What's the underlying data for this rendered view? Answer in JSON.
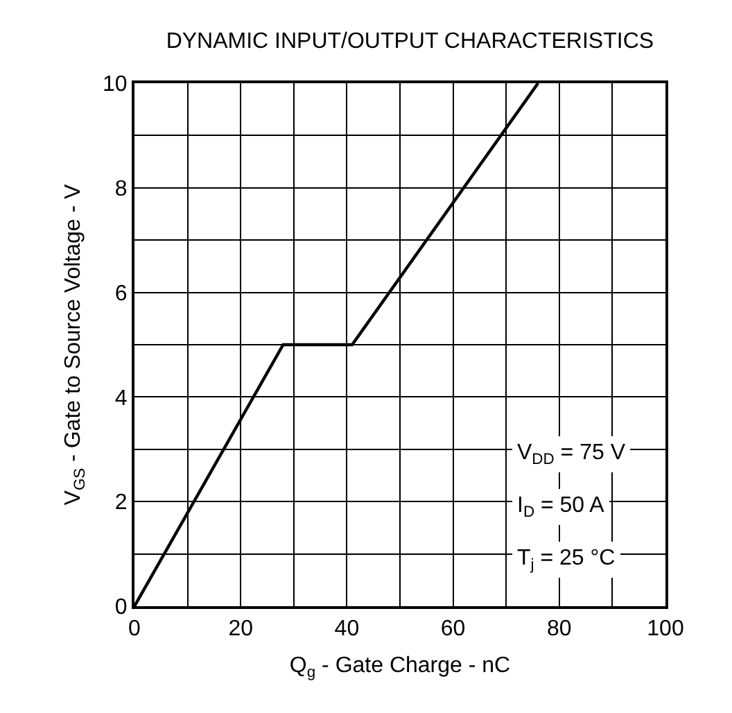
{
  "chart_data": {
    "type": "line",
    "title": "DYNAMIC INPUT/OUTPUT CHARACTERISTICS",
    "xlabel": "Q$_{g}$ - Gate Charge - nC",
    "ylabel": "V$_{GS}$ - Gate to Source Voltage - V",
    "x": [
      0,
      28,
      41,
      76
    ],
    "series": [
      {
        "color": "#000000",
        "values": [
          0,
          5,
          5,
          10
        ]
      }
    ],
    "xlim": [
      0,
      100
    ],
    "ylim": [
      0,
      10
    ],
    "xticks": [
      0,
      {
        "value": 10,
        "label": null
      },
      20,
      {
        "value": 30,
        "label": null
      },
      40,
      {
        "value": 50,
        "label": null
      },
      60,
      {
        "value": 70,
        "label": null
      },
      80,
      {
        "value": 90,
        "label": null
      },
      100
    ],
    "yticks": [
      0,
      {
        "value": 1,
        "label": null
      },
      2,
      {
        "value": 3,
        "label": null
      },
      4,
      {
        "value": 5,
        "label": null
      },
      6,
      {
        "value": 7,
        "label": null
      },
      8,
      {
        "value": 9,
        "label": null
      },
      10
    ],
    "grid": true,
    "marker": "none",
    "line_style": "solid",
    "annotations": [
      "V$_{DD}$ = 75 V",
      "I$_{D}$ = 50 A",
      "T$_{j}$ = 25 °C"
    ]
  }
}
